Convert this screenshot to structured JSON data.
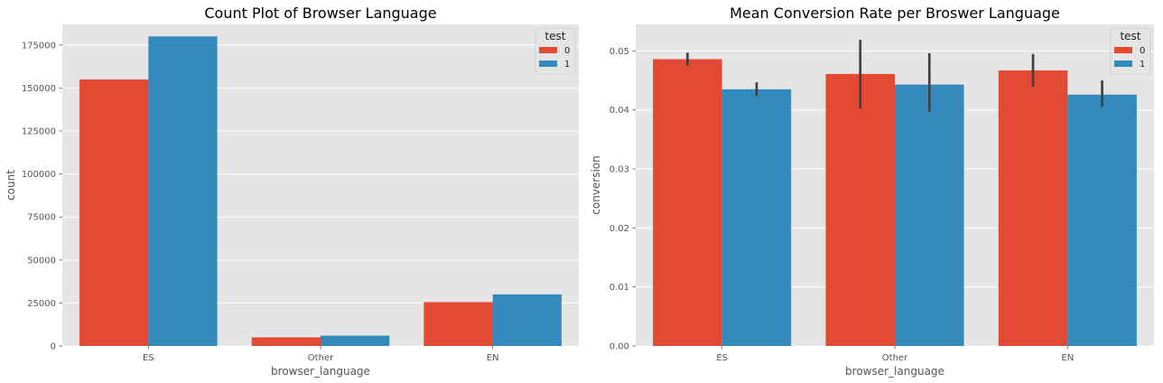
{
  "chart_data": [
    {
      "type": "bar",
      "title": "Count Plot of Browser Language",
      "xlabel": "browser_language",
      "ylabel": "count",
      "categories": [
        "ES",
        "Other",
        "EN"
      ],
      "ylim": [
        0,
        187000
      ],
      "yticks": [
        0,
        25000,
        50000,
        75000,
        100000,
        125000,
        150000,
        175000
      ],
      "legend": {
        "title": "test",
        "placement": "top-right"
      },
      "grid": true,
      "series": [
        {
          "name": "0",
          "color": "#E24A33",
          "values": [
            155000,
            5000,
            25500
          ]
        },
        {
          "name": "1",
          "color": "#348ABD",
          "values": [
            180000,
            6000,
            30000
          ]
        }
      ]
    },
    {
      "type": "bar",
      "title": "Mean Conversion Rate per Broswer Language",
      "xlabel": "browser_language",
      "ylabel": "conversion",
      "categories": [
        "ES",
        "Other",
        "EN"
      ],
      "ylim": [
        0,
        0.0545
      ],
      "yticks": [
        0.0,
        0.01,
        0.02,
        0.03,
        0.04,
        0.05
      ],
      "tick_decimals": 2,
      "legend": {
        "title": "test",
        "placement": "top-right"
      },
      "grid": true,
      "series": [
        {
          "name": "0",
          "color": "#E24A33",
          "values": [
            0.0486,
            0.0461,
            0.0467
          ],
          "ci_low": [
            0.0475,
            0.0402,
            0.044
          ],
          "ci_high": [
            0.0497,
            0.0519,
            0.0495
          ]
        },
        {
          "name": "1",
          "color": "#348ABD",
          "values": [
            0.0435,
            0.0443,
            0.0426
          ],
          "ci_low": [
            0.0423,
            0.0397,
            0.0405
          ],
          "ci_high": [
            0.0447,
            0.0496,
            0.045
          ]
        }
      ]
    }
  ]
}
